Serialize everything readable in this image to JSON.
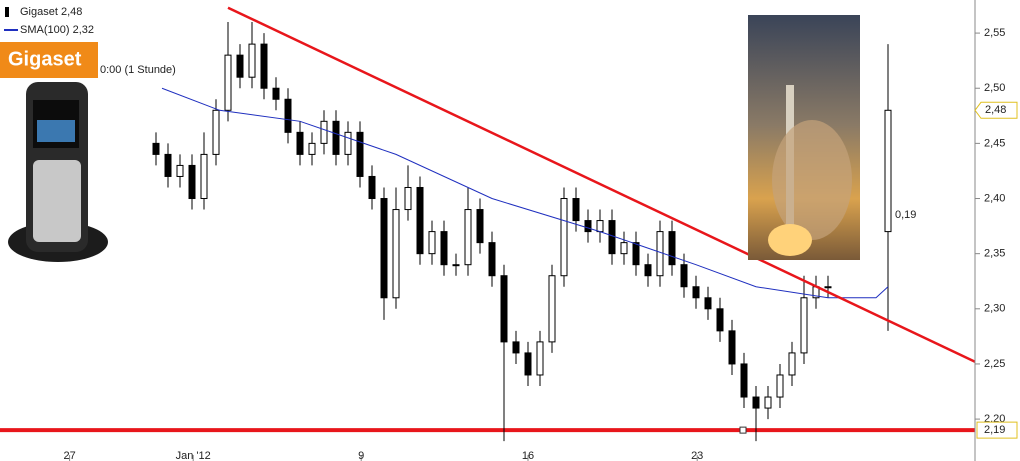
{
  "chart_data": {
    "type": "candlestick",
    "logo": "Gigaset",
    "interval": "0:00 (1 Stunde)",
    "x": [
      0,
      1,
      2,
      3,
      4,
      5,
      6,
      7,
      8,
      9,
      10,
      11,
      12,
      13,
      14,
      15,
      16,
      17,
      18,
      19,
      20,
      21,
      22,
      23,
      24,
      25,
      26,
      27,
      28,
      29,
      30,
      31,
      32,
      33,
      34,
      35,
      36,
      37,
      38,
      39,
      40,
      41,
      42,
      43,
      44,
      45,
      46,
      47,
      48,
      49,
      50,
      51,
      52,
      53,
      54,
      55,
      56,
      61
    ],
    "series": [
      {
        "name": "Gigaset 2,48",
        "color": "#000000",
        "open": [
          2.45,
          2.44,
          2.42,
          2.43,
          2.4,
          2.44,
          2.48,
          2.53,
          2.51,
          2.54,
          2.5,
          2.49,
          2.46,
          2.44,
          2.45,
          2.47,
          2.44,
          2.46,
          2.42,
          2.4,
          2.31,
          2.39,
          2.41,
          2.35,
          2.37,
          2.34,
          2.34,
          2.39,
          2.36,
          2.33,
          2.27,
          2.26,
          2.24,
          2.27,
          2.33,
          2.4,
          2.38,
          2.37,
          2.38,
          2.35,
          2.36,
          2.34,
          2.33,
          2.37,
          2.34,
          2.32,
          2.31,
          2.3,
          2.28,
          2.25,
          2.22,
          2.21,
          2.22,
          2.24,
          2.26,
          2.31,
          2.32,
          2.37
        ],
        "high": [
          2.46,
          2.45,
          2.44,
          2.44,
          2.46,
          2.49,
          2.56,
          2.54,
          2.56,
          2.55,
          2.51,
          2.5,
          2.47,
          2.46,
          2.48,
          2.48,
          2.47,
          2.47,
          2.43,
          2.41,
          2.41,
          2.43,
          2.42,
          2.38,
          2.38,
          2.35,
          2.41,
          2.4,
          2.37,
          2.34,
          2.28,
          2.27,
          2.28,
          2.34,
          2.41,
          2.41,
          2.39,
          2.39,
          2.39,
          2.37,
          2.37,
          2.35,
          2.38,
          2.38,
          2.35,
          2.33,
          2.32,
          2.31,
          2.29,
          2.26,
          2.23,
          2.23,
          2.25,
          2.27,
          2.33,
          2.33,
          2.33,
          2.54
        ],
        "low": [
          2.43,
          2.41,
          2.41,
          2.39,
          2.39,
          2.43,
          2.47,
          2.5,
          2.5,
          2.49,
          2.48,
          2.45,
          2.43,
          2.43,
          2.44,
          2.43,
          2.43,
          2.41,
          2.39,
          2.29,
          2.3,
          2.38,
          2.34,
          2.34,
          2.33,
          2.33,
          2.33,
          2.35,
          2.32,
          2.18,
          2.25,
          2.23,
          2.23,
          2.26,
          2.32,
          2.37,
          2.36,
          2.36,
          2.34,
          2.34,
          2.33,
          2.32,
          2.32,
          2.33,
          2.31,
          2.3,
          2.29,
          2.27,
          2.24,
          2.21,
          2.18,
          2.2,
          2.21,
          2.23,
          2.25,
          2.3,
          2.31,
          2.28
        ],
        "close": [
          2.44,
          2.42,
          2.43,
          2.4,
          2.44,
          2.48,
          2.53,
          2.51,
          2.54,
          2.5,
          2.49,
          2.46,
          2.44,
          2.45,
          2.47,
          2.44,
          2.46,
          2.42,
          2.4,
          2.31,
          2.39,
          2.41,
          2.35,
          2.37,
          2.34,
          2.34,
          2.39,
          2.36,
          2.33,
          2.27,
          2.26,
          2.24,
          2.27,
          2.33,
          2.4,
          2.38,
          2.37,
          2.38,
          2.35,
          2.36,
          2.34,
          2.33,
          2.37,
          2.34,
          2.32,
          2.31,
          2.3,
          2.28,
          2.25,
          2.22,
          2.21,
          2.22,
          2.24,
          2.26,
          2.31,
          2.32,
          2.32,
          2.48
        ]
      },
      {
        "name": "SMA(100) 2,32",
        "color": "#1f2fbf",
        "type": "line",
        "x": [
          0.5,
          5.3,
          12,
          20,
          28,
          37,
          45,
          50,
          56,
          60,
          61
        ],
        "values": [
          2.5,
          2.48,
          2.47,
          2.44,
          2.4,
          2.37,
          2.34,
          2.32,
          2.31,
          2.31,
          2.32
        ]
      }
    ],
    "last_price": {
      "value": 2.48,
      "label": "2,48"
    },
    "support": {
      "value": 2.19,
      "label": "2,19",
      "color": "#e8161b"
    },
    "trendline": {
      "x": [
        6,
        68.25
      ],
      "values": [
        2.573,
        2.252
      ],
      "color": "#e8161b"
    },
    "gap_annotation": "0,19",
    "xlim": [
      -13,
      68.25
    ],
    "ylim": [
      2.162,
      2.58
    ],
    "xticks": [
      {
        "value": -7.2,
        "label": "27"
      },
      {
        "value": 3.1,
        "label": "Jan '12"
      },
      {
        "value": 17.1,
        "label": "9"
      },
      {
        "value": 31,
        "label": "16"
      },
      {
        "value": 45.1,
        "label": "23"
      }
    ],
    "yticks": [
      {
        "value": 2.2,
        "label": "2,20"
      },
      {
        "value": 2.25,
        "label": "2,25"
      },
      {
        "value": 2.3,
        "label": "2,30"
      },
      {
        "value": 2.35,
        "label": "2,35"
      },
      {
        "value": 2.4,
        "label": "2,40"
      },
      {
        "value": 2.45,
        "label": "2,45"
      },
      {
        "value": 2.5,
        "label": "2,50"
      },
      {
        "value": 2.55,
        "label": "2,55"
      }
    ]
  }
}
